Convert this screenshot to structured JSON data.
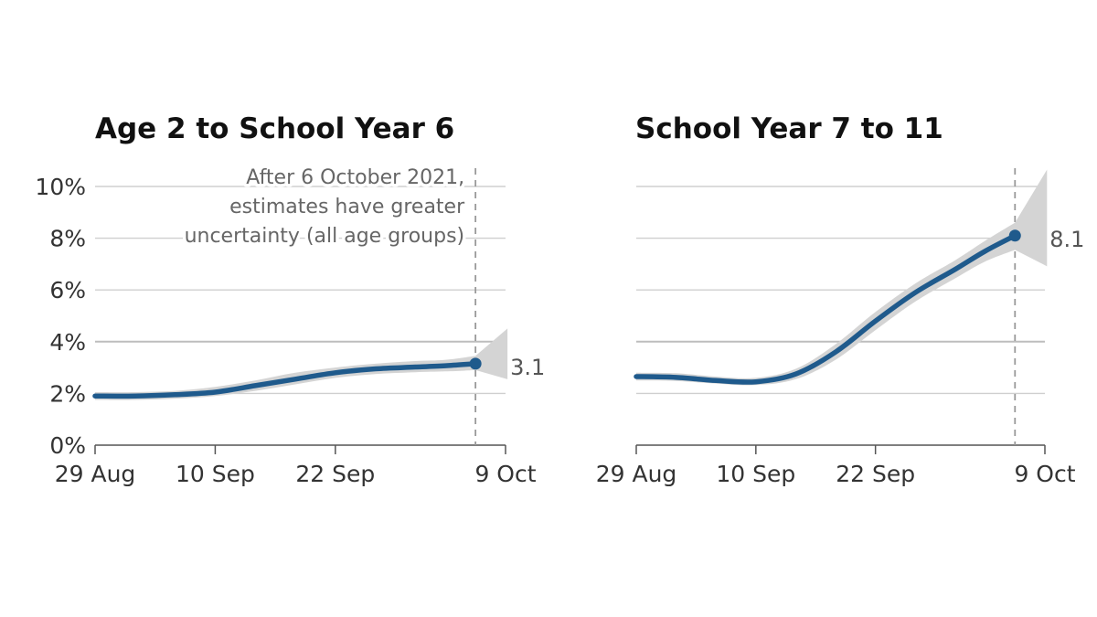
{
  "chart_data": [
    {
      "type": "line",
      "title": "Age 2 to School Year 6",
      "x_ticks": [
        "29 Aug",
        "10 Sep",
        "22 Sep",
        "9 Oct"
      ],
      "y_ticks": [
        "0%",
        "2%",
        "4%",
        "6%",
        "8%",
        "10%"
      ],
      "ylim": [
        0,
        10
      ],
      "xlim": [
        "2021-08-29",
        "2021-10-09"
      ],
      "grid": true,
      "annotation": [
        "After 6 October 2021,",
        "estimates have greater",
        "uncertainty (all age groups)"
      ],
      "cutoff_date": "2021-10-06",
      "end_label": "3.1",
      "series": [
        {
          "color": "#1f5a8c",
          "band_color": "#d4d4d4",
          "x": [
            "2021-08-29",
            "2021-09-02",
            "2021-09-06",
            "2021-09-10",
            "2021-09-14",
            "2021-09-18",
            "2021-09-22",
            "2021-09-26",
            "2021-09-30",
            "2021-10-03",
            "2021-10-06"
          ],
          "y": [
            1.9,
            1.9,
            1.95,
            2.05,
            2.3,
            2.55,
            2.8,
            2.95,
            3.02,
            3.07,
            3.15
          ],
          "lower": [
            1.75,
            1.75,
            1.8,
            1.9,
            2.1,
            2.35,
            2.6,
            2.75,
            2.82,
            2.85,
            2.9
          ],
          "upper": [
            2.05,
            2.05,
            2.1,
            2.25,
            2.5,
            2.8,
            3.0,
            3.15,
            3.25,
            3.3,
            3.45
          ]
        }
      ]
    },
    {
      "type": "line",
      "title": "School Year 7 to 11",
      "x_ticks": [
        "29 Aug",
        "10 Sep",
        "22 Sep",
        "9 Oct"
      ],
      "ylim": [
        0,
        10
      ],
      "xlim": [
        "2021-08-29",
        "2021-10-09"
      ],
      "grid": true,
      "cutoff_date": "2021-10-06",
      "end_label": "8.1",
      "series": [
        {
          "color": "#1f5a8c",
          "band_color": "#d4d4d4",
          "x": [
            "2021-08-29",
            "2021-09-02",
            "2021-09-06",
            "2021-09-10",
            "2021-09-14",
            "2021-09-18",
            "2021-09-22",
            "2021-09-26",
            "2021-09-30",
            "2021-10-03",
            "2021-10-06"
          ],
          "y": [
            2.65,
            2.62,
            2.5,
            2.45,
            2.75,
            3.6,
            4.8,
            5.9,
            6.8,
            7.5,
            8.1
          ],
          "lower": [
            2.5,
            2.48,
            2.38,
            2.32,
            2.55,
            3.3,
            4.45,
            5.55,
            6.45,
            7.1,
            7.55
          ],
          "upper": [
            2.8,
            2.78,
            2.65,
            2.6,
            2.95,
            3.9,
            5.15,
            6.25,
            7.15,
            7.9,
            8.6
          ]
        }
      ]
    }
  ]
}
